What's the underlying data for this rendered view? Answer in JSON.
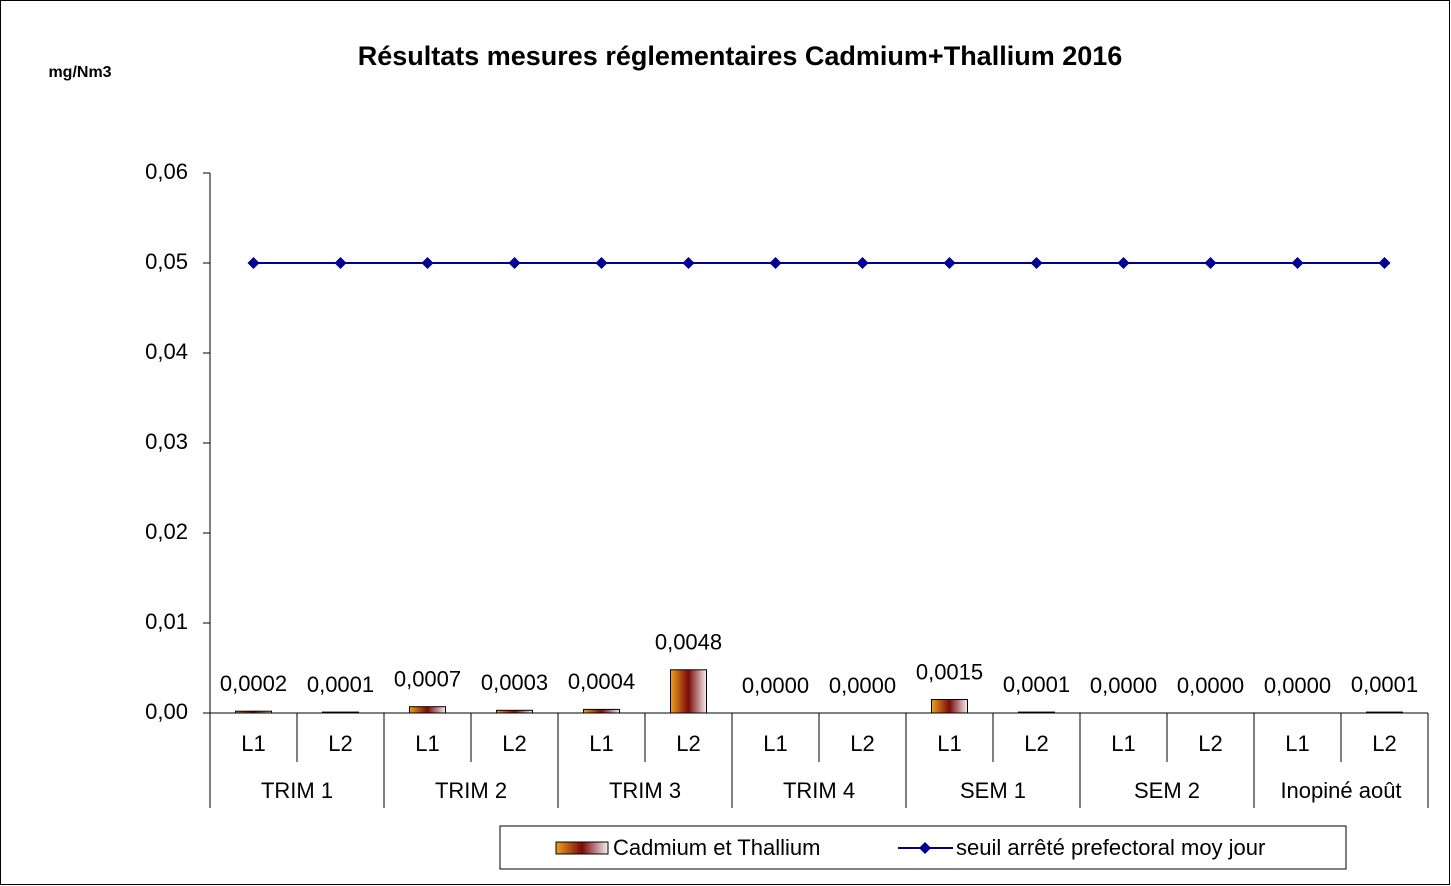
{
  "chart_data": {
    "type": "bar",
    "title": "Résultats mesures réglementaires Cadmium+Thallium 2016",
    "y_label": "mg/Nm3",
    "categories": [
      "L1",
      "L2",
      "L1",
      "L2",
      "L1",
      "L2",
      "L1",
      "L2",
      "L1",
      "L2",
      "L1",
      "L2",
      "L1",
      "L2"
    ],
    "groups": [
      "TRIM 1",
      "TRIM 2",
      "TRIM 3",
      "TRIM 4",
      "SEM 1",
      "SEM 2",
      "Inopiné août"
    ],
    "series": [
      {
        "name": "Cadmium et Thallium",
        "type": "bar",
        "gradient": [
          "#f0a020",
          "#7a0a0a",
          "#f6eeee"
        ],
        "values": [
          0.0002,
          0.0001,
          0.0007,
          0.0003,
          0.0004,
          0.0048,
          0.0,
          0.0,
          0.0015,
          0.0001,
          0.0,
          0.0,
          0.0,
          0.0001
        ],
        "value_labels": [
          "0,0002",
          "0,0001",
          "0,0007",
          "0,0003",
          "0,0004",
          "0,0048",
          "0,0000",
          "0,0000",
          "0,0015",
          "0,0001",
          "0,0000",
          "0,0000",
          "0,0000",
          "0,0001"
        ]
      },
      {
        "name": "seuil arrêté prefectoral moy jour",
        "type": "line",
        "color": "#000090",
        "values": [
          0.05,
          0.05,
          0.05,
          0.05,
          0.05,
          0.05,
          0.05,
          0.05,
          0.05,
          0.05,
          0.05,
          0.05,
          0.05,
          0.05
        ]
      }
    ],
    "ylim": [
      0,
      0.06
    ],
    "yticks": [
      {
        "value": 0,
        "label": "0,00"
      },
      {
        "value": 0.01,
        "label": "0,01"
      },
      {
        "value": 0.02,
        "label": "0,02"
      },
      {
        "value": 0.03,
        "label": "0,03"
      },
      {
        "value": 0.04,
        "label": "0,04"
      },
      {
        "value": 0.05,
        "label": "0,05"
      },
      {
        "value": 0.06,
        "label": "0,06"
      }
    ],
    "legend": "bottom"
  }
}
